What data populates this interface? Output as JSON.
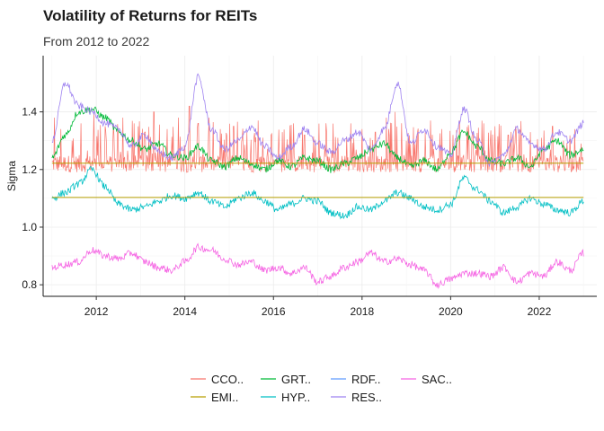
{
  "chart_data": {
    "type": "line",
    "title": "Volatility of Returns for REITs",
    "subtitle": "From 2012 to 2022",
    "xlabel": "",
    "ylabel": "Sigma",
    "xlim": [
      2010.8,
      2023.3
    ],
    "ylim": [
      0.76,
      1.595
    ],
    "x_ticks": [
      2012,
      2014,
      2016,
      2018,
      2020,
      2022
    ],
    "x_tick_labels": [
      "2012",
      "2014",
      "2016",
      "2018",
      "2020",
      "2022"
    ],
    "y_ticks": [
      0.8,
      1.0,
      1.2,
      1.4
    ],
    "y_tick_labels": [
      "0.8",
      "1.0",
      "1.2",
      "1.4"
    ],
    "grid": true,
    "legend": {
      "position": "bottom",
      "columns": 4
    },
    "series": [
      {
        "name": "CCO..",
        "color": "#F8766D",
        "style": "spiky",
        "x": [
          2011.0,
          2023.0
        ],
        "baseline": 1.19,
        "peaks": [
          [
            2011.05,
            1.38
          ],
          [
            2011.2,
            1.34
          ],
          [
            2011.45,
            1.3
          ],
          [
            2011.65,
            1.36
          ],
          [
            2011.95,
            1.4
          ],
          [
            2012.2,
            1.35
          ],
          [
            2012.4,
            1.32
          ],
          [
            2012.6,
            1.38
          ],
          [
            2012.85,
            1.36
          ],
          [
            2013.1,
            1.33
          ],
          [
            2013.3,
            1.4
          ],
          [
            2013.6,
            1.34
          ],
          [
            2013.85,
            1.38
          ],
          [
            2014.1,
            1.42
          ],
          [
            2014.3,
            1.36
          ],
          [
            2014.55,
            1.38
          ],
          [
            2014.8,
            1.34
          ],
          [
            2015.1,
            1.35
          ],
          [
            2015.4,
            1.33
          ],
          [
            2015.65,
            1.37
          ],
          [
            2015.95,
            1.32
          ],
          [
            2016.2,
            1.33
          ],
          [
            2016.45,
            1.36
          ],
          [
            2016.7,
            1.32
          ],
          [
            2016.95,
            1.3
          ],
          [
            2017.2,
            1.33
          ],
          [
            2017.45,
            1.31
          ],
          [
            2017.75,
            1.36
          ],
          [
            2018.0,
            1.34
          ],
          [
            2018.3,
            1.33
          ],
          [
            2018.55,
            1.38
          ],
          [
            2018.75,
            1.4
          ],
          [
            2019.0,
            1.3
          ],
          [
            2019.25,
            1.33
          ],
          [
            2019.55,
            1.37
          ],
          [
            2019.8,
            1.34
          ],
          [
            2020.05,
            1.32
          ],
          [
            2020.2,
            1.37
          ],
          [
            2020.5,
            1.33
          ],
          [
            2020.75,
            1.36
          ],
          [
            2021.0,
            1.35
          ],
          [
            2021.3,
            1.32
          ],
          [
            2021.55,
            1.34
          ],
          [
            2021.8,
            1.33
          ],
          [
            2022.05,
            1.31
          ],
          [
            2022.3,
            1.35
          ],
          [
            2022.55,
            1.3
          ],
          [
            2022.8,
            1.34
          ]
        ]
      },
      {
        "name": "EMI..",
        "color": "#B79F00",
        "style": "flat",
        "segments": [
          {
            "x": [
              2011.0,
              2023.0
            ],
            "y": [
              1.222,
              1.222
            ]
          },
          {
            "x": [
              2011.0,
              2023.0
            ],
            "y": [
              1.103,
              1.103
            ]
          }
        ]
      },
      {
        "name": "GRT..",
        "color": "#00BA38",
        "style": "wander",
        "x": [
          2011.0,
          2011.3,
          2011.6,
          2011.9,
          2012.2,
          2012.5,
          2012.8,
          2013.1,
          2013.4,
          2013.7,
          2014.0,
          2014.3,
          2014.6,
          2014.9,
          2015.2,
          2015.5,
          2015.8,
          2016.1,
          2016.4,
          2016.7,
          2017.0,
          2017.3,
          2017.6,
          2017.9,
          2018.2,
          2018.5,
          2018.8,
          2019.1,
          2019.4,
          2019.7,
          2020.0,
          2020.3,
          2020.6,
          2020.9,
          2021.2,
          2021.5,
          2021.8,
          2022.1,
          2022.4,
          2022.7,
          2023.0
        ],
        "y": [
          1.24,
          1.32,
          1.4,
          1.41,
          1.38,
          1.33,
          1.3,
          1.27,
          1.29,
          1.25,
          1.24,
          1.28,
          1.23,
          1.21,
          1.24,
          1.22,
          1.2,
          1.23,
          1.21,
          1.24,
          1.23,
          1.2,
          1.22,
          1.24,
          1.27,
          1.29,
          1.24,
          1.21,
          1.23,
          1.2,
          1.26,
          1.33,
          1.28,
          1.23,
          1.22,
          1.24,
          1.21,
          1.27,
          1.3,
          1.25,
          1.27
        ]
      },
      {
        "name": "HYP..",
        "color": "#00BFC4",
        "style": "wander",
        "x": [
          2011.0,
          2011.3,
          2011.6,
          2011.9,
          2012.2,
          2012.5,
          2012.8,
          2013.1,
          2013.4,
          2013.7,
          2014.0,
          2014.3,
          2014.6,
          2014.9,
          2015.2,
          2015.5,
          2015.8,
          2016.1,
          2016.4,
          2016.7,
          2017.0,
          2017.3,
          2017.6,
          2017.9,
          2018.2,
          2018.5,
          2018.8,
          2019.1,
          2019.4,
          2019.7,
          2020.0,
          2020.3,
          2020.6,
          2020.9,
          2021.2,
          2021.5,
          2021.8,
          2022.1,
          2022.4,
          2022.7,
          2023.0
        ],
        "y": [
          1.1,
          1.12,
          1.15,
          1.2,
          1.14,
          1.08,
          1.06,
          1.07,
          1.09,
          1.11,
          1.1,
          1.12,
          1.09,
          1.07,
          1.1,
          1.12,
          1.09,
          1.06,
          1.08,
          1.1,
          1.09,
          1.05,
          1.04,
          1.07,
          1.06,
          1.09,
          1.12,
          1.1,
          1.07,
          1.06,
          1.08,
          1.17,
          1.13,
          1.09,
          1.05,
          1.07,
          1.1,
          1.08,
          1.06,
          1.05,
          1.09
        ]
      },
      {
        "name": "RDF..",
        "color": "#619CFF",
        "style": "none",
        "x": [],
        "y": []
      },
      {
        "name": "RES..",
        "color": "#9E82F0",
        "style": "wander",
        "x": [
          2011.0,
          2011.3,
          2011.6,
          2011.9,
          2012.2,
          2012.5,
          2012.8,
          2013.1,
          2013.4,
          2013.7,
          2014.0,
          2014.3,
          2014.6,
          2014.9,
          2015.2,
          2015.5,
          2015.8,
          2016.1,
          2016.4,
          2016.7,
          2017.0,
          2017.3,
          2017.6,
          2017.9,
          2018.2,
          2018.5,
          2018.8,
          2019.1,
          2019.4,
          2019.7,
          2020.0,
          2020.3,
          2020.6,
          2020.9,
          2021.2,
          2021.5,
          2021.8,
          2022.1,
          2022.4,
          2022.7,
          2023.0
        ],
        "y": [
          1.3,
          1.5,
          1.42,
          1.4,
          1.36,
          1.34,
          1.28,
          1.32,
          1.26,
          1.24,
          1.28,
          1.52,
          1.34,
          1.27,
          1.3,
          1.35,
          1.28,
          1.24,
          1.28,
          1.34,
          1.29,
          1.26,
          1.3,
          1.33,
          1.27,
          1.34,
          1.5,
          1.29,
          1.34,
          1.28,
          1.25,
          1.41,
          1.3,
          1.22,
          1.25,
          1.34,
          1.29,
          1.27,
          1.33,
          1.3,
          1.36
        ]
      },
      {
        "name": "SAC..",
        "color": "#F564E3",
        "style": "wander",
        "x": [
          2011.0,
          2011.3,
          2011.6,
          2011.9,
          2012.2,
          2012.5,
          2012.8,
          2013.1,
          2013.4,
          2013.7,
          2014.0,
          2014.3,
          2014.6,
          2014.9,
          2015.2,
          2015.5,
          2015.8,
          2016.1,
          2016.4,
          2016.7,
          2017.0,
          2017.3,
          2017.6,
          2017.9,
          2018.2,
          2018.5,
          2018.8,
          2019.1,
          2019.4,
          2019.7,
          2020.0,
          2020.3,
          2020.6,
          2020.9,
          2021.2,
          2021.5,
          2021.8,
          2022.1,
          2022.4,
          2022.7,
          2023.0
        ],
        "y": [
          0.86,
          0.87,
          0.88,
          0.92,
          0.9,
          0.89,
          0.91,
          0.88,
          0.86,
          0.85,
          0.88,
          0.93,
          0.92,
          0.89,
          0.87,
          0.88,
          0.85,
          0.86,
          0.84,
          0.86,
          0.81,
          0.83,
          0.86,
          0.88,
          0.91,
          0.88,
          0.89,
          0.87,
          0.85,
          0.8,
          0.82,
          0.84,
          0.84,
          0.83,
          0.86,
          0.81,
          0.84,
          0.83,
          0.88,
          0.85,
          0.91
        ]
      }
    ]
  }
}
